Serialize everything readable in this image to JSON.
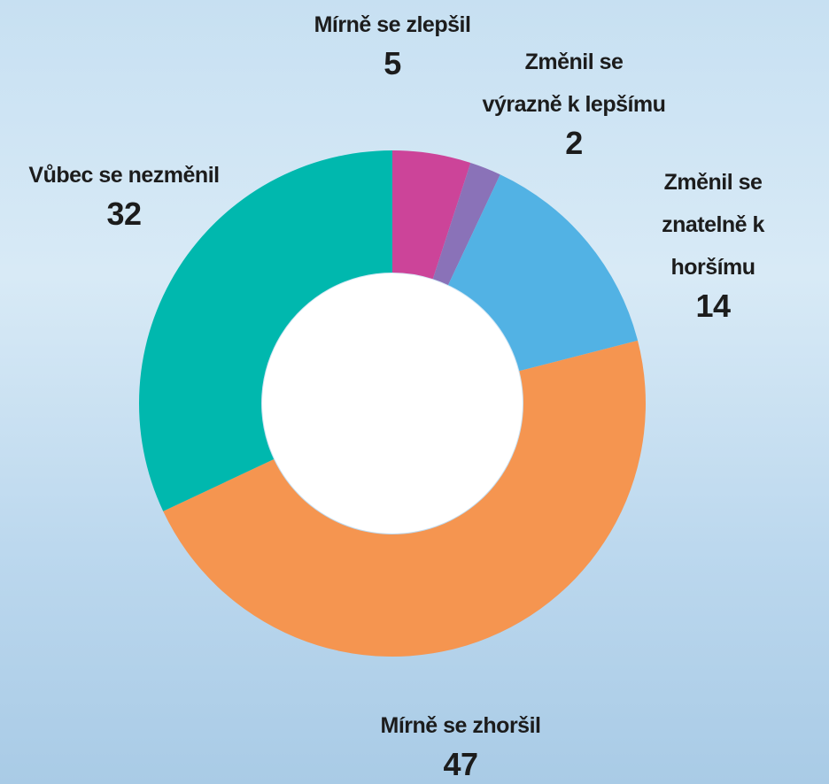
{
  "chart_data": {
    "type": "donut",
    "categories": [
      "Mírně se zlepšil",
      "Změnil se\nvýrazně k lepšímu",
      "Změnil se\nznatelně k horšímu",
      "Mírně se zhoršil",
      "Vůbec se nezměnil"
    ],
    "values": [
      5,
      2,
      14,
      47,
      32
    ],
    "colors": [
      "#cc4499",
      "#8a72b8",
      "#52b2e4",
      "#f59550",
      "#00b8ae"
    ]
  }
}
